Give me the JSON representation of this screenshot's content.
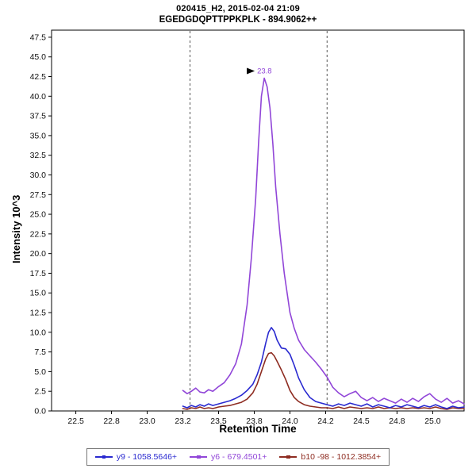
{
  "chart_data": {
    "type": "line",
    "title": "020415_H2, 2015-02-04 21:09",
    "subtitle": "EGEDGDQPTTPPKPLK - 894.9062++",
    "xlabel": "Retention Time",
    "ylabel": "Intensity 10^3",
    "xlim": [
      22.33,
      25.22
    ],
    "ylim": [
      0,
      48.4
    ],
    "grid": false,
    "legend_position": "bottom",
    "y_ticks": [
      0.0,
      2.5,
      5.0,
      7.5,
      10.0,
      12.5,
      15.0,
      17.5,
      20.0,
      22.5,
      25.0,
      27.5,
      30.0,
      32.5,
      35.0,
      37.5,
      40.0,
      42.5,
      45.0,
      47.5
    ],
    "x_ticks": [
      {
        "value": 22.5,
        "label": "22.5"
      },
      {
        "value": 22.75,
        "label": "22.8"
      },
      {
        "value": 23.0,
        "label": "23.0"
      },
      {
        "value": 23.25,
        "label": "23.2"
      },
      {
        "value": 23.5,
        "label": "23.5"
      },
      {
        "value": 23.75,
        "label": "23.8"
      },
      {
        "value": 24.0,
        "label": "24.0"
      },
      {
        "value": 24.25,
        "label": "24.2"
      },
      {
        "value": 24.5,
        "label": "24.5"
      },
      {
        "value": 24.75,
        "label": "24.8"
      },
      {
        "value": 25.0,
        "label": "25.0"
      }
    ],
    "integration_boundaries": [
      23.3,
      24.26
    ],
    "peak_annotation": {
      "x": 23.82,
      "y": 42.3,
      "label": "23.8"
    },
    "series": [
      {
        "name": "y9 - 1058.5646+",
        "color": "#2a2ad0",
        "points": [
          [
            23.25,
            0.6
          ],
          [
            23.28,
            0.4
          ],
          [
            23.31,
            0.7
          ],
          [
            23.34,
            0.5
          ],
          [
            23.37,
            0.8
          ],
          [
            23.4,
            0.6
          ],
          [
            23.43,
            0.9
          ],
          [
            23.46,
            0.7
          ],
          [
            23.5,
            0.9
          ],
          [
            23.54,
            1.1
          ],
          [
            23.58,
            1.3
          ],
          [
            23.62,
            1.6
          ],
          [
            23.66,
            2.0
          ],
          [
            23.7,
            2.6
          ],
          [
            23.74,
            3.4
          ],
          [
            23.77,
            4.6
          ],
          [
            23.8,
            6.2
          ],
          [
            23.83,
            8.6
          ],
          [
            23.85,
            10.0
          ],
          [
            23.87,
            10.6
          ],
          [
            23.89,
            10.1
          ],
          [
            23.91,
            9.0
          ],
          [
            23.94,
            8.0
          ],
          [
            23.97,
            7.9
          ],
          [
            24.0,
            7.2
          ],
          [
            24.03,
            5.8
          ],
          [
            24.06,
            4.2
          ],
          [
            24.1,
            2.7
          ],
          [
            24.14,
            1.7
          ],
          [
            24.18,
            1.2
          ],
          [
            24.22,
            1.0
          ],
          [
            24.26,
            0.8
          ],
          [
            24.3,
            0.6
          ],
          [
            24.34,
            0.9
          ],
          [
            24.38,
            0.7
          ],
          [
            24.42,
            1.0
          ],
          [
            24.46,
            0.8
          ],
          [
            24.5,
            0.6
          ],
          [
            24.54,
            0.9
          ],
          [
            24.58,
            0.5
          ],
          [
            24.62,
            0.8
          ],
          [
            24.66,
            0.6
          ],
          [
            24.7,
            0.4
          ],
          [
            24.74,
            0.7
          ],
          [
            24.78,
            0.5
          ],
          [
            24.82,
            0.8
          ],
          [
            24.86,
            0.6
          ],
          [
            24.9,
            0.4
          ],
          [
            24.94,
            0.7
          ],
          [
            24.98,
            0.5
          ],
          [
            25.02,
            0.8
          ],
          [
            25.06,
            0.5
          ],
          [
            25.1,
            0.3
          ],
          [
            25.14,
            0.6
          ],
          [
            25.18,
            0.4
          ],
          [
            25.22,
            0.5
          ]
        ]
      },
      {
        "name": "y6 - 679.4501+",
        "color": "#9146d8",
        "points": [
          [
            23.25,
            2.6
          ],
          [
            23.28,
            2.2
          ],
          [
            23.31,
            2.5
          ],
          [
            23.34,
            2.9
          ],
          [
            23.37,
            2.4
          ],
          [
            23.4,
            2.3
          ],
          [
            23.43,
            2.7
          ],
          [
            23.46,
            2.5
          ],
          [
            23.5,
            3.1
          ],
          [
            23.54,
            3.6
          ],
          [
            23.58,
            4.6
          ],
          [
            23.62,
            6.0
          ],
          [
            23.66,
            8.5
          ],
          [
            23.7,
            13.5
          ],
          [
            23.73,
            19.5
          ],
          [
            23.76,
            27.0
          ],
          [
            23.78,
            34.0
          ],
          [
            23.8,
            40.0
          ],
          [
            23.82,
            42.3
          ],
          [
            23.84,
            41.2
          ],
          [
            23.86,
            38.5
          ],
          [
            23.88,
            34.0
          ],
          [
            23.9,
            28.5
          ],
          [
            23.93,
            22.5
          ],
          [
            23.96,
            17.5
          ],
          [
            24.0,
            12.5
          ],
          [
            24.03,
            10.5
          ],
          [
            24.06,
            9.0
          ],
          [
            24.1,
            7.8
          ],
          [
            24.14,
            7.0
          ],
          [
            24.18,
            6.2
          ],
          [
            24.22,
            5.3
          ],
          [
            24.26,
            4.3
          ],
          [
            24.3,
            3.0
          ],
          [
            24.34,
            2.3
          ],
          [
            24.38,
            1.8
          ],
          [
            24.42,
            2.2
          ],
          [
            24.46,
            2.5
          ],
          [
            24.5,
            1.7
          ],
          [
            24.54,
            1.3
          ],
          [
            24.58,
            1.7
          ],
          [
            24.62,
            1.2
          ],
          [
            24.66,
            1.6
          ],
          [
            24.7,
            1.3
          ],
          [
            24.74,
            1.0
          ],
          [
            24.78,
            1.5
          ],
          [
            24.82,
            1.1
          ],
          [
            24.86,
            1.6
          ],
          [
            24.9,
            1.2
          ],
          [
            24.94,
            1.8
          ],
          [
            24.98,
            2.2
          ],
          [
            25.02,
            1.5
          ],
          [
            25.06,
            1.1
          ],
          [
            25.1,
            1.6
          ],
          [
            25.14,
            1.0
          ],
          [
            25.18,
            1.3
          ],
          [
            25.22,
            0.9
          ]
        ]
      },
      {
        "name": "b10 -98 - 1012.3854+",
        "color": "#8e2c21",
        "points": [
          [
            23.25,
            0.3
          ],
          [
            23.28,
            0.2
          ],
          [
            23.31,
            0.4
          ],
          [
            23.34,
            0.3
          ],
          [
            23.37,
            0.5
          ],
          [
            23.4,
            0.3
          ],
          [
            23.43,
            0.4
          ],
          [
            23.46,
            0.3
          ],
          [
            23.5,
            0.5
          ],
          [
            23.54,
            0.6
          ],
          [
            23.58,
            0.7
          ],
          [
            23.62,
            0.9
          ],
          [
            23.66,
            1.1
          ],
          [
            23.7,
            1.5
          ],
          [
            23.74,
            2.3
          ],
          [
            23.77,
            3.4
          ],
          [
            23.8,
            5.0
          ],
          [
            23.83,
            6.6
          ],
          [
            23.85,
            7.3
          ],
          [
            23.87,
            7.4
          ],
          [
            23.89,
            7.0
          ],
          [
            23.91,
            6.3
          ],
          [
            23.94,
            5.2
          ],
          [
            23.97,
            4.0
          ],
          [
            24.0,
            2.6
          ],
          [
            24.03,
            1.7
          ],
          [
            24.06,
            1.2
          ],
          [
            24.1,
            0.8
          ],
          [
            24.14,
            0.6
          ],
          [
            24.18,
            0.5
          ],
          [
            24.22,
            0.4
          ],
          [
            24.26,
            0.4
          ],
          [
            24.3,
            0.3
          ],
          [
            24.34,
            0.5
          ],
          [
            24.38,
            0.3
          ],
          [
            24.42,
            0.5
          ],
          [
            24.46,
            0.4
          ],
          [
            24.5,
            0.3
          ],
          [
            24.54,
            0.4
          ],
          [
            24.58,
            0.3
          ],
          [
            24.62,
            0.5
          ],
          [
            24.66,
            0.3
          ],
          [
            24.7,
            0.4
          ],
          [
            24.74,
            0.3
          ],
          [
            24.78,
            0.4
          ],
          [
            24.82,
            0.3
          ],
          [
            24.86,
            0.4
          ],
          [
            24.9,
            0.3
          ],
          [
            24.94,
            0.4
          ],
          [
            24.98,
            0.3
          ],
          [
            25.02,
            0.5
          ],
          [
            25.06,
            0.3
          ],
          [
            25.1,
            0.2
          ],
          [
            25.14,
            0.4
          ],
          [
            25.18,
            0.3
          ],
          [
            25.22,
            0.3
          ]
        ]
      }
    ]
  }
}
